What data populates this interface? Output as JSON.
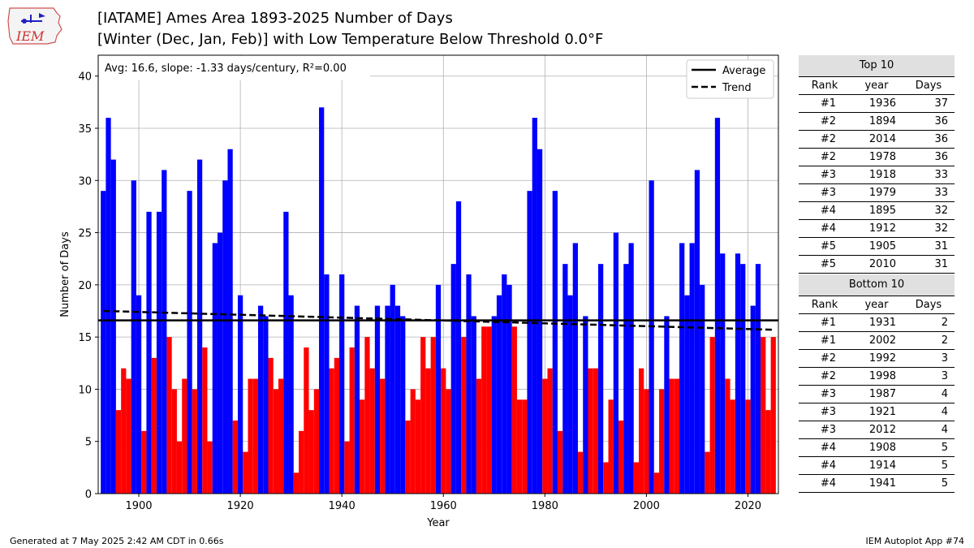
{
  "title_line1": "[IATAME] Ames Area 1893-2025 Number of Days",
  "title_line2": "[Winter (Dec, Jan, Feb)] with Low Temperature Below Threshold 0.0°F",
  "logo_text": "IEM",
  "footer_left": "Generated at 7 May 2025 2:42 AM CDT in 0.66s",
  "footer_right": "IEM Autoplot App #74",
  "colors": {
    "above": "#0000ff",
    "below": "#ff0000",
    "average": "#000000",
    "trend": "#000000"
  },
  "chart_data": {
    "type": "bar",
    "xlabel": "Year",
    "ylabel": "Number of Days",
    "xlim": [
      1892,
      2026
    ],
    "ylim": [
      0,
      42
    ],
    "xticks": [
      1900,
      1920,
      1940,
      1960,
      1980,
      2000,
      2020
    ],
    "yticks": [
      0,
      5,
      10,
      15,
      20,
      25,
      30,
      35,
      40
    ],
    "grid": true,
    "annotation": "Avg: 16.6, slope: -1.33 days/century, R²=0.00",
    "average": 16.6,
    "trend": {
      "start": [
        1893,
        17.5
      ],
      "end": [
        2025,
        15.7
      ]
    },
    "legend": {
      "position": "top-right",
      "entries": [
        "Average",
        "Trend"
      ]
    },
    "years": [
      1893,
      1894,
      1895,
      1896,
      1897,
      1898,
      1899,
      1900,
      1901,
      1902,
      1903,
      1904,
      1905,
      1906,
      1907,
      1908,
      1909,
      1910,
      1911,
      1912,
      1913,
      1914,
      1915,
      1916,
      1917,
      1918,
      1919,
      1920,
      1921,
      1922,
      1923,
      1924,
      1925,
      1926,
      1927,
      1928,
      1929,
      1930,
      1931,
      1932,
      1933,
      1934,
      1935,
      1936,
      1937,
      1938,
      1939,
      1940,
      1941,
      1942,
      1943,
      1944,
      1945,
      1946,
      1947,
      1948,
      1949,
      1950,
      1951,
      1952,
      1953,
      1954,
      1955,
      1956,
      1957,
      1958,
      1959,
      1960,
      1961,
      1962,
      1963,
      1964,
      1965,
      1966,
      1967,
      1968,
      1969,
      1970,
      1971,
      1972,
      1973,
      1974,
      1975,
      1976,
      1977,
      1978,
      1979,
      1980,
      1981,
      1982,
      1983,
      1984,
      1985,
      1986,
      1987,
      1988,
      1989,
      1990,
      1991,
      1992,
      1993,
      1994,
      1995,
      1996,
      1997,
      1998,
      1999,
      2000,
      2001,
      2002,
      2003,
      2004,
      2005,
      2006,
      2007,
      2008,
      2009,
      2010,
      2011,
      2012,
      2013,
      2014,
      2015,
      2016,
      2017,
      2018,
      2019,
      2020,
      2021,
      2022,
      2023,
      2024,
      2025
    ],
    "values": [
      29,
      36,
      32,
      8,
      12,
      11,
      30,
      19,
      6,
      27,
      13,
      27,
      31,
      15,
      10,
      5,
      11,
      29,
      10,
      32,
      14,
      5,
      24,
      25,
      30,
      33,
      7,
      19,
      4,
      11,
      11,
      18,
      17,
      13,
      10,
      11,
      27,
      19,
      2,
      6,
      14,
      8,
      10,
      37,
      21,
      12,
      13,
      21,
      5,
      14,
      18,
      9,
      15,
      12,
      18,
      11,
      18,
      20,
      18,
      17,
      7,
      10,
      9,
      15,
      12,
      15,
      20,
      12,
      10,
      22,
      28,
      15,
      21,
      17,
      11,
      16,
      16,
      17,
      19,
      21,
      20,
      16,
      9,
      9,
      29,
      36,
      33,
      11,
      12,
      29,
      6,
      22,
      19,
      24,
      4,
      17,
      12,
      12,
      22,
      3,
      9,
      25,
      7,
      22,
      24,
      3,
      12,
      10,
      30,
      2,
      10,
      17,
      11,
      11,
      24,
      19,
      24,
      31,
      20,
      4,
      15,
      36,
      23,
      11,
      9,
      23,
      22,
      9,
      18,
      22,
      15,
      8,
      15
    ]
  },
  "top10": {
    "header": "Top 10",
    "columns": [
      "Rank",
      "year",
      "Days"
    ],
    "rows": [
      [
        "#1",
        "1936",
        "37"
      ],
      [
        "#2",
        "1894",
        "36"
      ],
      [
        "#2",
        "2014",
        "36"
      ],
      [
        "#2",
        "1978",
        "36"
      ],
      [
        "#3",
        "1918",
        "33"
      ],
      [
        "#3",
        "1979",
        "33"
      ],
      [
        "#4",
        "1895",
        "32"
      ],
      [
        "#4",
        "1912",
        "32"
      ],
      [
        "#5",
        "1905",
        "31"
      ],
      [
        "#5",
        "2010",
        "31"
      ]
    ]
  },
  "bottom10": {
    "header": "Bottom 10",
    "columns": [
      "Rank",
      "year",
      "Days"
    ],
    "rows": [
      [
        "#1",
        "1931",
        "2"
      ],
      [
        "#1",
        "2002",
        "2"
      ],
      [
        "#2",
        "1992",
        "3"
      ],
      [
        "#2",
        "1998",
        "3"
      ],
      [
        "#3",
        "1987",
        "4"
      ],
      [
        "#3",
        "1921",
        "4"
      ],
      [
        "#3",
        "2012",
        "4"
      ],
      [
        "#4",
        "1908",
        "5"
      ],
      [
        "#4",
        "1914",
        "5"
      ],
      [
        "#4",
        "1941",
        "5"
      ]
    ]
  }
}
